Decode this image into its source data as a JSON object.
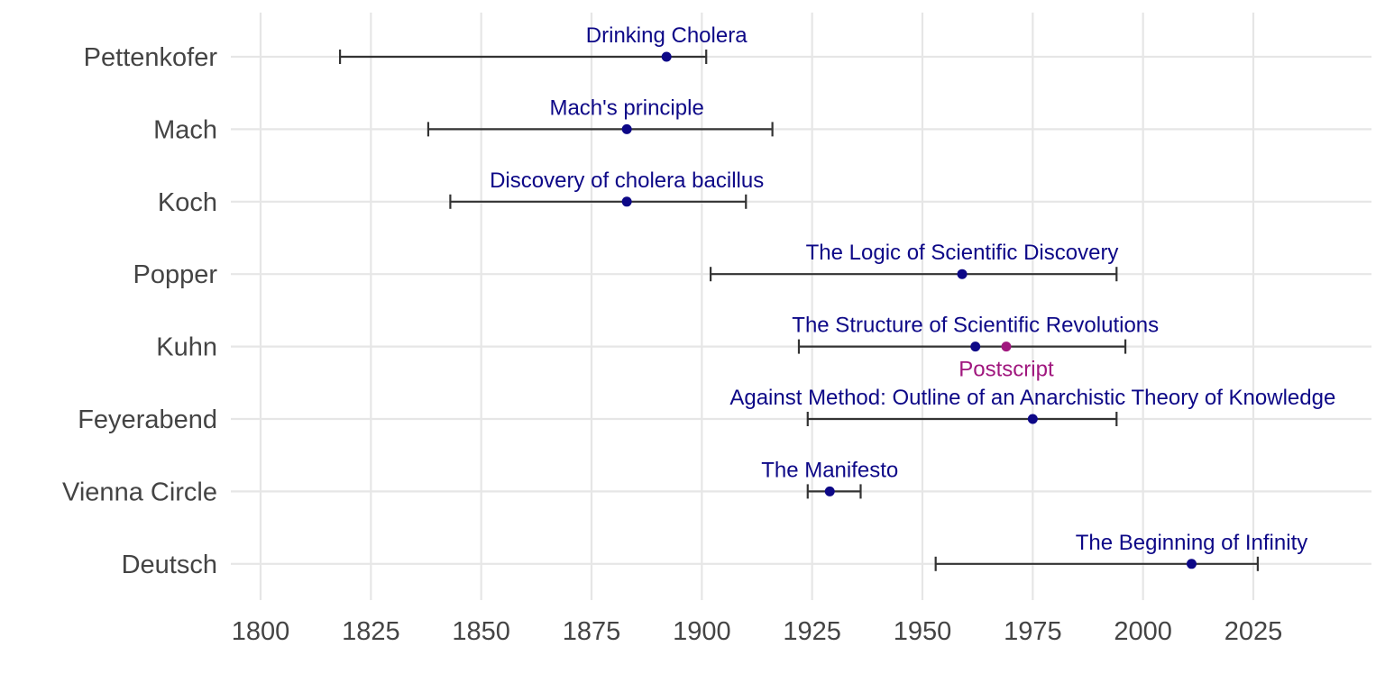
{
  "chart_data": {
    "type": "scatter",
    "x_ticks": [
      1800,
      1825,
      1850,
      1875,
      1900,
      1925,
      1950,
      1975,
      2000,
      2025
    ],
    "xlim": [
      1793,
      2052
    ],
    "grid": true,
    "colors": {
      "main": "#0d0887",
      "postscript": "#a0177e",
      "lifespan": "#333333"
    },
    "people": [
      {
        "name": "Pettenkofer",
        "start": 1818,
        "end": 1901,
        "works": [
          {
            "label": "Drinking Cholera",
            "year": 1892,
            "label_position": "above"
          }
        ]
      },
      {
        "name": "Mach",
        "start": 1838,
        "end": 1916,
        "works": [
          {
            "label": "Mach's principle",
            "year": 1883,
            "label_position": "above"
          }
        ]
      },
      {
        "name": "Koch",
        "start": 1843,
        "end": 1910,
        "works": [
          {
            "label": "Discovery of cholera bacillus",
            "year": 1883,
            "label_position": "above"
          }
        ]
      },
      {
        "name": "Popper",
        "start": 1902,
        "end": 1994,
        "works": [
          {
            "label": "The Logic of Scientific Discovery",
            "year": 1959,
            "label_position": "above"
          }
        ]
      },
      {
        "name": "Kuhn",
        "start": 1922,
        "end": 1996,
        "works": [
          {
            "label": "The Structure of Scientific Revolutions",
            "year": 1962,
            "label_position": "above"
          },
          {
            "label": "Postscript",
            "year": 1969,
            "label_position": "below",
            "color": "postscript"
          }
        ]
      },
      {
        "name": "Feyerabend",
        "start": 1924,
        "end": 1994,
        "works": [
          {
            "label": "Against Method: Outline of an Anarchistic Theory of Knowledge",
            "year": 1975,
            "label_position": "above"
          }
        ]
      },
      {
        "name": "Vienna Circle",
        "start": 1924,
        "end": 1936,
        "works": [
          {
            "label": "The Manifesto",
            "year": 1929,
            "label_position": "above"
          }
        ]
      },
      {
        "name": "Deutsch",
        "start": 1953,
        "end": 2026,
        "works": [
          {
            "label": "The Beginning of Infinity",
            "year": 2011,
            "label_position": "above"
          }
        ]
      }
    ]
  }
}
